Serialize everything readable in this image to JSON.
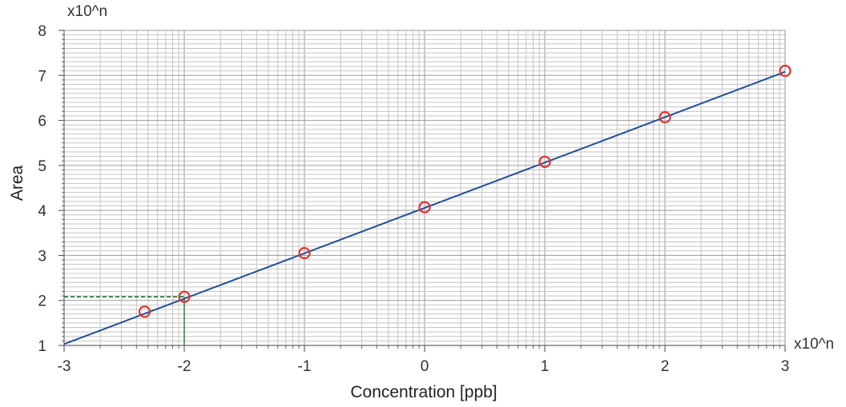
{
  "chart_data": {
    "type": "scatter",
    "title": "",
    "xlabel": "Concentration [ppb]",
    "ylabel": "Area",
    "x_exponent_label": "x10^n",
    "y_exponent_label": "x10^n",
    "x_scale": "log",
    "y_scale": "log",
    "xlim": [
      -3,
      3
    ],
    "ylim": [
      1,
      8
    ],
    "x_ticks": [
      "-3",
      "-2",
      "-1",
      "0",
      "1",
      "2",
      "3"
    ],
    "y_ticks": [
      "1",
      "2",
      "3",
      "4",
      "5",
      "6",
      "7",
      "8"
    ],
    "grid": true,
    "series": [
      {
        "kind": "points",
        "color": "#e8312f",
        "points": [
          {
            "x": -2.33,
            "y": 1.75
          },
          {
            "x": -2.0,
            "y": 2.08
          },
          {
            "x": -1.0,
            "y": 3.05
          },
          {
            "x": 0.0,
            "y": 4.07
          },
          {
            "x": 1.0,
            "y": 5.08
          },
          {
            "x": 2.0,
            "y": 6.07
          },
          {
            "x": 3.0,
            "y": 7.1
          }
        ]
      },
      {
        "kind": "fit-line",
        "color": "#1f4e9c",
        "points": [
          {
            "x": -3.0,
            "y": 1.03
          },
          {
            "x": 3.0,
            "y": 7.08
          }
        ]
      }
    ],
    "annotations": [
      {
        "kind": "guide",
        "color": "#1e7a3a",
        "x": -2.0,
        "y": 2.08
      }
    ]
  }
}
